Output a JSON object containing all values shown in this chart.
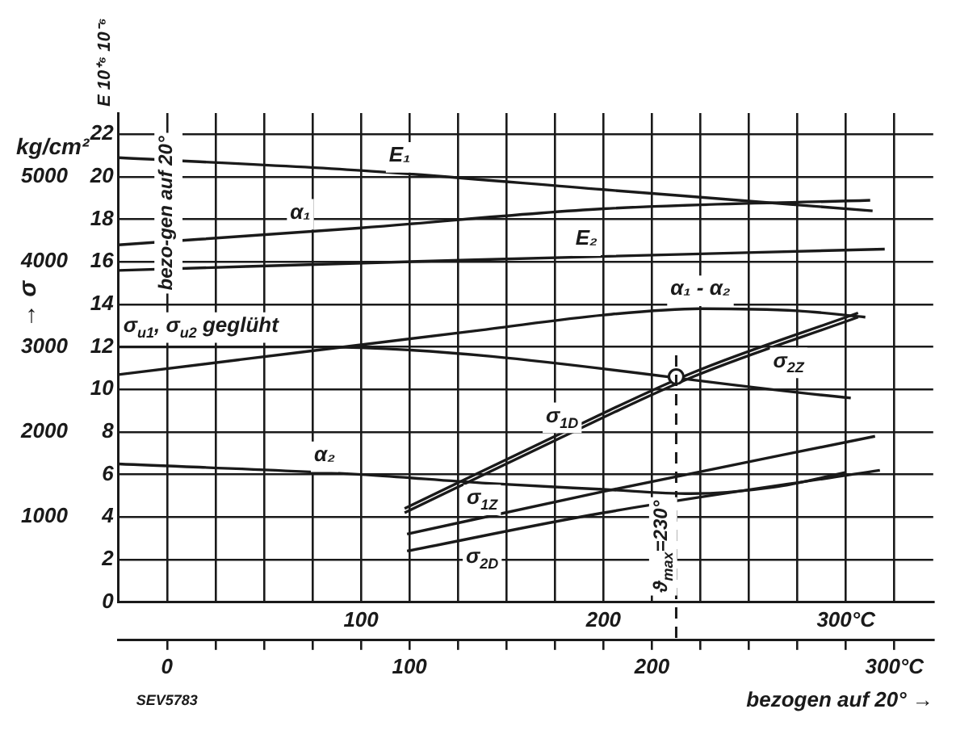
{
  "chart_data": {
    "type": "line",
    "ylabel": "E 10⁺⁶ 10⁻⁶",
    "y2label": "→ σ",
    "x2label": "bezogen auf 20° →",
    "annotations": [
      "bezo-gen auf 20°",
      "kg/cm²",
      "SEV5783"
    ],
    "xlim": [
      0,
      336
    ],
    "xticks": [
      {
        "value": 20,
        "label": null
      },
      {
        "value": 40,
        "label": null
      },
      {
        "value": 60,
        "label": null
      },
      {
        "value": 80,
        "label": null
      },
      100,
      {
        "value": 120,
        "label": null
      },
      {
        "value": 140,
        "label": null
      },
      {
        "value": 160,
        "label": null
      },
      {
        "value": 180,
        "label": null
      },
      200,
      {
        "value": 220,
        "label": null
      },
      {
        "value": 240,
        "label": null
      },
      {
        "value": 260,
        "label": null
      },
      {
        "value": 280,
        "label": null
      },
      {
        "value": 300,
        "label": "300°C"
      },
      {
        "value": 320,
        "label": null
      }
    ],
    "x2lim": [
      -20,
      316
    ],
    "x2ticks": [
      0,
      {
        "value": 20,
        "label": null
      },
      {
        "value": 40,
        "label": null
      },
      {
        "value": 60,
        "label": null
      },
      {
        "value": 80,
        "label": null
      },
      100,
      {
        "value": 120,
        "label": null
      },
      {
        "value": 140,
        "label": null
      },
      {
        "value": 160,
        "label": null
      },
      {
        "value": 180,
        "label": null
      },
      200,
      {
        "value": 220,
        "label": null
      },
      {
        "value": 240,
        "label": null
      },
      {
        "value": 260,
        "label": null
      },
      {
        "value": 280,
        "label": null
      },
      {
        "value": 300,
        "label": "300°C"
      }
    ],
    "ylim": [
      0,
      23
    ],
    "yticks": [
      0,
      2,
      4,
      6,
      8,
      10,
      12,
      14,
      16,
      18,
      20,
      22
    ],
    "y2lim": [
      0,
      5750
    ],
    "y2ticks": [
      1000,
      2000,
      3000,
      4000,
      5000
    ],
    "grid": true,
    "marker": "none",
    "line_style": "solid",
    "ref_lines": [
      {
        "axis": "x",
        "value": 230,
        "label": "ϑ$_{max}$=230°",
        "line_style": "dashed"
      }
    ],
    "series": [
      {
        "name": "E₁",
        "color": "#1a1a1a",
        "x": [
          0,
          100,
          200,
          311
        ],
        "values": [
          20.9,
          20.3,
          19.4,
          18.4
        ]
      },
      {
        "name": "α₁",
        "color": "#1a1a1a",
        "x": [
          0,
          100,
          200,
          310
        ],
        "values": [
          16.8,
          17.6,
          18.5,
          18.9
        ]
      },
      {
        "name": "E₂",
        "color": "#1a1a1a",
        "x": [
          0,
          147,
          316
        ],
        "values": [
          15.6,
          16.1,
          16.6
        ]
      },
      {
        "name": "σ$_{u1}$, σ$_{u2}$ geglüht",
        "color": "#1a1a1a",
        "axis": "y2",
        "x": [
          0,
          80,
          302
        ],
        "values": [
          3000,
          3000,
          2400
        ]
      },
      {
        "name": "α₁ - α₂",
        "color": "#1a1a1a",
        "x": [
          0,
          50,
          100,
          150,
          200,
          240,
          280,
          308
        ],
        "values": [
          10.7,
          11.4,
          12.1,
          12.8,
          13.5,
          13.8,
          13.7,
          13.4
        ]
      },
      {
        "name": "σ$_{1D}$",
        "color": "#1a1a1a",
        "axis": "y2",
        "x": [
          118,
          180,
          237,
          305
        ],
        "values": [
          1100,
          1950,
          2700,
          3400
        ]
      },
      {
        "name": "σ$_{2Z}$",
        "color": "#1a1a1a",
        "axis": "y2",
        "x": [
          118,
          180,
          237,
          305
        ],
        "values": [
          1050,
          1900,
          2650,
          3350
        ]
      },
      {
        "name": "α₂",
        "color": "#1a1a1a",
        "x": [
          0,
          100,
          150,
          200,
          236,
          270,
          300
        ],
        "values": [
          6.5,
          6.0,
          5.6,
          5.3,
          5.1,
          5.4,
          6.1
        ]
      },
      {
        "name": "σ$_{1Z}$",
        "color": "#1a1a1a",
        "axis": "y2",
        "x": [
          119,
          200,
          312
        ],
        "values": [
          800,
          1300,
          1950
        ]
      },
      {
        "name": "σ$_{2D}$",
        "color": "#1a1a1a",
        "axis": "y2",
        "x": [
          119,
          200,
          314
        ],
        "values": [
          600,
          1050,
          1550
        ]
      },
      {
        "type": "scatter",
        "marker": "circle",
        "color": "#1a1a1a",
        "axis": "y2",
        "x": [
          230
        ],
        "values": [
          2650
        ]
      }
    ]
  }
}
